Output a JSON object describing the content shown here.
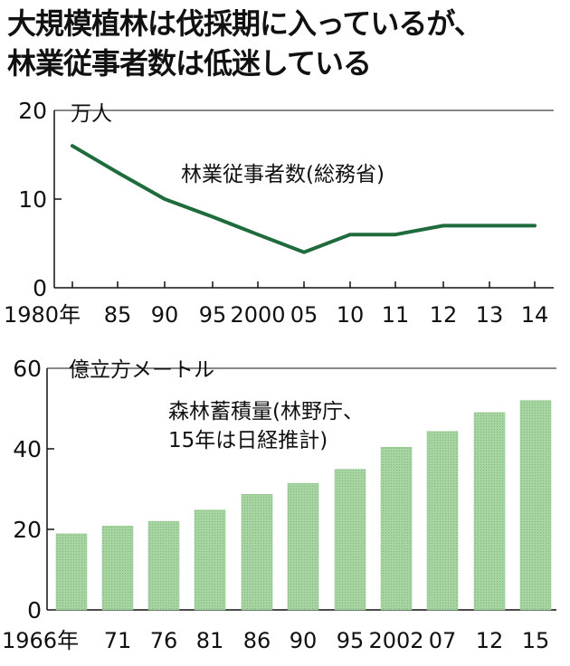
{
  "title_lines": [
    "大規模植林は伐採期に入っているが、",
    "林業従事者数は低迷している"
  ],
  "chart_data": [
    {
      "type": "line",
      "unit": "万人",
      "series_label": "林業従事者数(総務省)",
      "categories": [
        "1980年",
        "85",
        "90",
        "95",
        "2000",
        "05",
        "10",
        "11",
        "12",
        "13",
        "14"
      ],
      "values": [
        16,
        13,
        10,
        8,
        6,
        4,
        6,
        6,
        7,
        7,
        7
      ],
      "ylim": [
        0,
        20
      ],
      "yticks": [
        0,
        10,
        20
      ],
      "color": "#1f6b3c"
    },
    {
      "type": "bar",
      "unit": "億立方メートル",
      "series_label_lines": [
        "森林蓄積量(林野庁、",
        "15年は日経推計)"
      ],
      "categories": [
        "1966年",
        "71",
        "76",
        "81",
        "86",
        "90",
        "95",
        "2002",
        "07",
        "12",
        "15"
      ],
      "values": [
        18.9,
        20.8,
        22.0,
        24.8,
        28.7,
        31.4,
        34.9,
        40.4,
        44.3,
        49.0,
        52.0
      ],
      "ylim": [
        0,
        60
      ],
      "yticks": [
        0,
        20,
        40,
        60
      ],
      "color": "#9ccf98"
    }
  ]
}
